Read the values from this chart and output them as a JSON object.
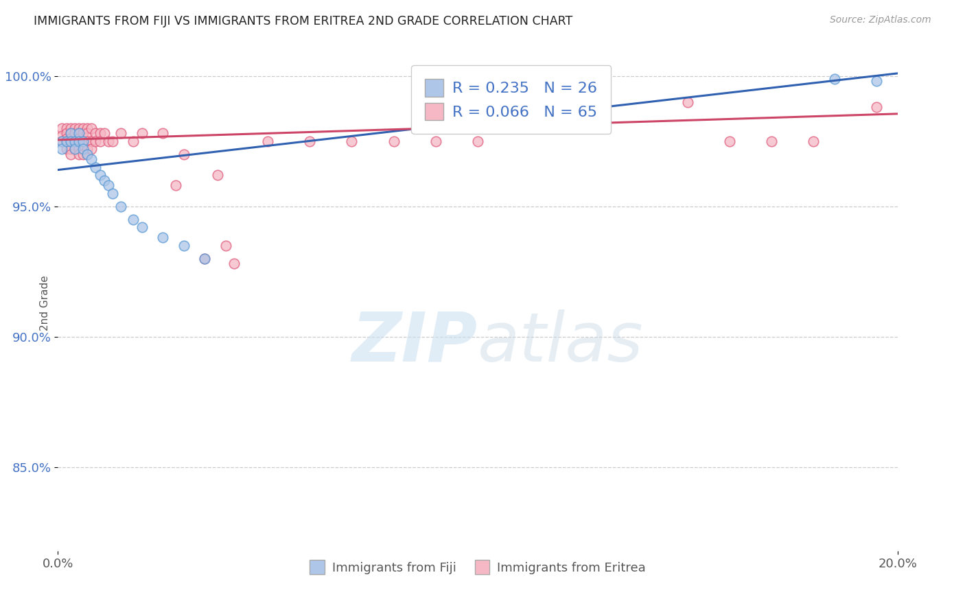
{
  "title": "IMMIGRANTS FROM FIJI VS IMMIGRANTS FROM ERITREA 2ND GRADE CORRELATION CHART",
  "source": "Source: ZipAtlas.com",
  "ylabel": "2nd Grade",
  "watermark_zip": "ZIP",
  "watermark_atlas": "atlas",
  "fiji_R": 0.235,
  "fiji_N": 26,
  "eritrea_R": 0.066,
  "eritrea_N": 65,
  "fiji_fill_color": "#aec6e8",
  "eritrea_fill_color": "#f5b8c4",
  "fiji_edge_color": "#5b9bd5",
  "eritrea_edge_color": "#e06080",
  "fiji_line_color": "#3060b0",
  "eritrea_line_color": "#cc4466",
  "xlim": [
    0.0,
    0.2
  ],
  "ylim": [
    0.818,
    1.008
  ],
  "yticks": [
    0.85,
    0.9,
    0.95,
    1.0
  ],
  "ytick_labels": [
    "85.0%",
    "90.0%",
    "95.0%",
    "100.0%"
  ],
  "xtick_labels": [
    "0.0%",
    "20.0%"
  ],
  "fiji_x": [
    0.001,
    0.001,
    0.002,
    0.003,
    0.003,
    0.004,
    0.004,
    0.005,
    0.005,
    0.006,
    0.006,
    0.007,
    0.008,
    0.009,
    0.01,
    0.011,
    0.012,
    0.013,
    0.015,
    0.018,
    0.02,
    0.025,
    0.03,
    0.035,
    0.185,
    0.195
  ],
  "fiji_y": [
    0.975,
    0.972,
    0.975,
    0.978,
    0.975,
    0.975,
    0.972,
    0.978,
    0.975,
    0.975,
    0.972,
    0.97,
    0.968,
    0.965,
    0.962,
    0.96,
    0.958,
    0.955,
    0.95,
    0.945,
    0.942,
    0.938,
    0.935,
    0.93,
    0.999,
    0.998
  ],
  "eritrea_x": [
    0.001,
    0.001,
    0.001,
    0.002,
    0.002,
    0.002,
    0.002,
    0.002,
    0.003,
    0.003,
    0.003,
    0.003,
    0.003,
    0.003,
    0.004,
    0.004,
    0.004,
    0.004,
    0.005,
    0.005,
    0.005,
    0.005,
    0.005,
    0.005,
    0.006,
    0.006,
    0.006,
    0.006,
    0.006,
    0.007,
    0.007,
    0.007,
    0.007,
    0.007,
    0.008,
    0.008,
    0.008,
    0.009,
    0.009,
    0.01,
    0.01,
    0.011,
    0.012,
    0.013,
    0.015,
    0.018,
    0.02,
    0.025,
    0.028,
    0.03,
    0.035,
    0.038,
    0.04,
    0.042,
    0.05,
    0.06,
    0.07,
    0.08,
    0.09,
    0.1,
    0.15,
    0.16,
    0.17,
    0.18,
    0.195
  ],
  "eritrea_y": [
    0.98,
    0.977,
    0.975,
    0.98,
    0.978,
    0.976,
    0.975,
    0.972,
    0.98,
    0.978,
    0.976,
    0.975,
    0.972,
    0.97,
    0.98,
    0.978,
    0.975,
    0.972,
    0.98,
    0.978,
    0.976,
    0.975,
    0.972,
    0.97,
    0.98,
    0.978,
    0.975,
    0.972,
    0.97,
    0.98,
    0.978,
    0.975,
    0.972,
    0.97,
    0.98,
    0.975,
    0.972,
    0.978,
    0.975,
    0.978,
    0.975,
    0.978,
    0.975,
    0.975,
    0.978,
    0.975,
    0.978,
    0.978,
    0.958,
    0.97,
    0.93,
    0.962,
    0.935,
    0.928,
    0.975,
    0.975,
    0.975,
    0.975,
    0.975,
    0.975,
    0.99,
    0.975,
    0.975,
    0.975,
    0.988
  ],
  "fiji_trend_x0": 0.0,
  "fiji_trend_y0": 0.964,
  "fiji_trend_x1": 0.2,
  "fiji_trend_y1": 1.001,
  "eritrea_trend_x0": 0.0,
  "eritrea_trend_y0": 0.9755,
  "eritrea_trend_x1": 0.2,
  "eritrea_trend_y1": 0.9855
}
